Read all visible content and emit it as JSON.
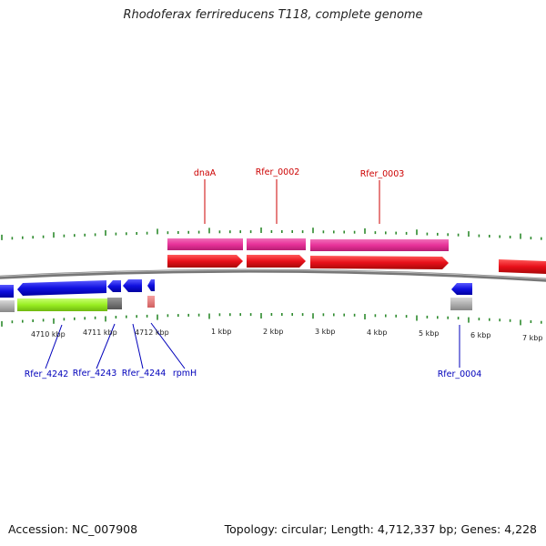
{
  "title": "Rhodoferax ferrireducens T118, complete genome",
  "accession_text": "Accession: NC_007908",
  "topology_text": "Topology: circular; Length: 4,712,337 bp; Genes: 4,228",
  "colors": {
    "pink_feature": "#e8329a",
    "red_feature": "#e8101a",
    "blue_feature": "#1010e0",
    "green_feature": "#99ee22",
    "gray_feature": "#a8a8a8",
    "tick": "#2d8a2d",
    "backbone": "#777777",
    "red_label": "#cc0000",
    "blue_label": "#0000bb"
  },
  "scale_labels": [
    "4710 kbp",
    "4711 kbp",
    "4712 kbp",
    "1 kbp",
    "2 kbp",
    "3 kbp",
    "4 kbp",
    "5 kbp",
    "6 kbp",
    "7 kbp"
  ],
  "top_gene_labels": [
    "dnaA",
    "Rfer_0002",
    "Rfer_0003"
  ],
  "bottom_gene_labels": [
    "Rfer_4242",
    "Rfer_4243",
    "Rfer_4244",
    "rpmH",
    "Rfer_0004"
  ]
}
